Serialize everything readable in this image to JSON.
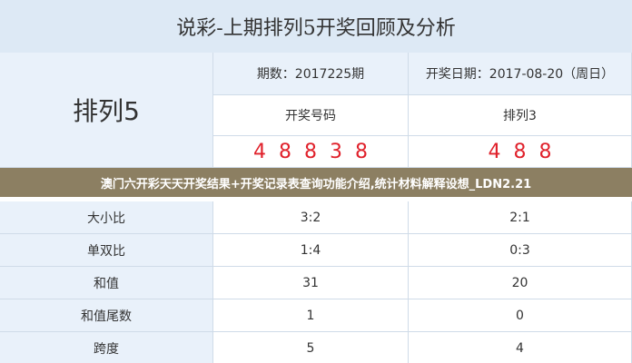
{
  "header": {
    "title": "说彩-上期排列5开奖回顾及分析"
  },
  "table": {
    "game": "排列5",
    "issue": "期数：2017225期",
    "date": "开奖日期：2017-08-20（周日）",
    "col1": "开奖号码",
    "col2": "排列3",
    "numbers1": "48838",
    "numbers2": "488",
    "rows": [
      [
        "大小比",
        "3:2",
        "2:1"
      ],
      [
        "单双比",
        "1:4",
        "0:3"
      ],
      [
        "和值",
        "31",
        "20"
      ],
      [
        "和值尾数",
        "1",
        "0"
      ],
      [
        "跨度",
        "5",
        "4"
      ]
    ]
  },
  "banner": "澳门六开彩天天开奖结果+开奖记录表查询功能介绍,统计材料解释设想_LDN2.21"
}
